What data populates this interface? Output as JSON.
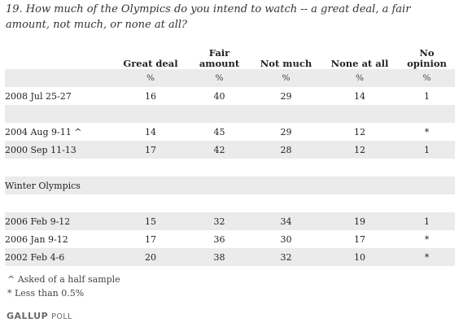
{
  "question": "19. How much of the Olympics do you intend to watch -- a great deal, a fair amount, not much, or none at all?",
  "columns": [
    "Great deal",
    "Fair amount",
    "Not much",
    "None at all",
    "No opinion"
  ],
  "columns_top": [
    "",
    "Fair",
    "",
    "",
    "No"
  ],
  "columns_bottom": [
    "Great deal",
    "amount",
    "Not much",
    "None at all",
    "opinion"
  ],
  "units": [
    "%",
    "%",
    "%",
    "%",
    "%"
  ],
  "rows": [
    {
      "label": "2008 Jul 25-27",
      "values": [
        "16",
        "40",
        "29",
        "14",
        "1"
      ]
    },
    {
      "label": "2004 Aug 9-11 ^",
      "values": [
        "14",
        "45",
        "29",
        "12",
        "*"
      ]
    },
    {
      "label": "2000 Sep 11-13",
      "values": [
        "17",
        "42",
        "28",
        "12",
        "1"
      ]
    },
    {
      "label": "2006 Feb 9-12",
      "values": [
        "15",
        "32",
        "34",
        "19",
        "1"
      ]
    },
    {
      "label": "2006 Jan 9-12",
      "values": [
        "17",
        "36",
        "30",
        "17",
        "*"
      ]
    },
    {
      "label": "2002 Feb 4-6",
      "values": [
        "20",
        "38",
        "32",
        "10",
        "*"
      ]
    }
  ],
  "section_label": "Winter Olympics",
  "footnotes": [
    "^ Asked of a half sample",
    "* Less than 0.5%"
  ],
  "logo": {
    "part1": "GALLUP",
    "part2": "POLL"
  },
  "colors": {
    "row_shade": "#ebebeb",
    "separator": "#d0d0d0",
    "text": "#222222"
  }
}
